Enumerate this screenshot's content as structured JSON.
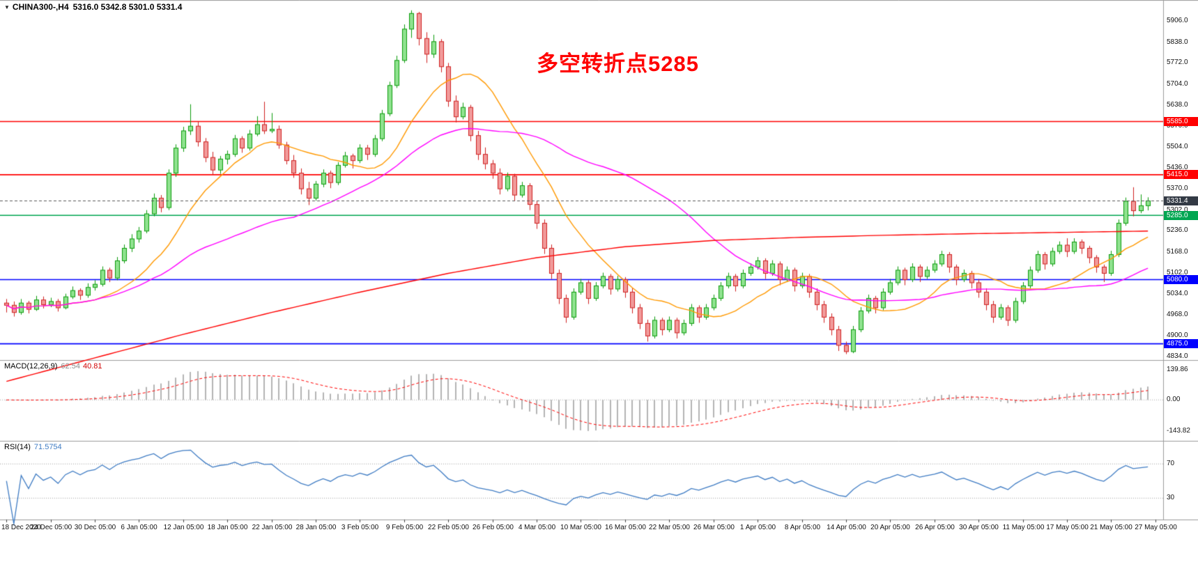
{
  "header": {
    "menu_icon": "▼",
    "symbol_timeframe": "CHINA300-,H4",
    "ohlc_values": "5316.0 5342.8 5301.0 5331.4"
  },
  "annotation": {
    "text": "多空转折点5285",
    "color": "#FF0000"
  },
  "chart_data": {
    "type": "candlestick",
    "symbol": "CHINA300-",
    "timeframe": "H4",
    "last_ohlc": {
      "open": 5316.0,
      "high": 5342.8,
      "low": 5301.0,
      "close": 5331.4
    },
    "price_axis": {
      "view_min": 4823,
      "view_max": 5973,
      "ticks": [
        "5906.0",
        "5838.0",
        "5772.0",
        "5704.0",
        "5638.0",
        "5570.0",
        "5504.0",
        "5436.0",
        "5370.0",
        "5302.0",
        "5236.0",
        "5168.0",
        "5102.0",
        "5034.0",
        "4968.0",
        "4900.0",
        "4834.0"
      ]
    },
    "x_axis": {
      "candles_per_label": 6,
      "labels": [
        "18 Dec 2020",
        "24 Dec 05:00",
        "30 Dec 05:00",
        "6 Jan 05:00",
        "12 Jan 05:00",
        "18 Jan 05:00",
        "22 Jan 05:00",
        "28 Jan 05:00",
        "3 Feb 05:00",
        "9 Feb 05:00",
        "22 Feb 05:00",
        "26 Feb 05:00",
        "4 Mar 05:00",
        "10 Mar 05:00",
        "16 Mar 05:00",
        "22 Mar 05:00",
        "26 Mar 05:00",
        "1 Apr 05:00",
        "8 Apr 05:00",
        "14 Apr 05:00",
        "20 Apr 05:00",
        "26 Apr 05:00",
        "30 Apr 05:00",
        "11 May 05:00",
        "17 May 05:00",
        "21 May 05:00",
        "27 May 05:00"
      ]
    },
    "up_color": {
      "fill": "#8FE28F",
      "border": "#0a9b0a"
    },
    "down_color": {
      "fill": "#F19A9A",
      "border": "#cf2020"
    },
    "candles": [
      [
        5005,
        5018,
        4975,
        4998
      ],
      [
        4998,
        5010,
        4962,
        4975
      ],
      [
        4975,
        5018,
        4968,
        5005
      ],
      [
        5005,
        5012,
        4972,
        4985
      ],
      [
        4985,
        5028,
        4980,
        5015
      ],
      [
        5015,
        5026,
        4988,
        5000
      ],
      [
        5000,
        5022,
        4992,
        5010
      ],
      [
        5010,
        5018,
        4978,
        4990
      ],
      [
        4990,
        5035,
        4985,
        5025
      ],
      [
        5025,
        5058,
        5018,
        5045
      ],
      [
        5045,
        5052,
        5015,
        5030
      ],
      [
        5030,
        5068,
        5022,
        5055
      ],
      [
        5055,
        5078,
        5045,
        5065
      ],
      [
        5065,
        5122,
        5058,
        5110
      ],
      [
        5110,
        5118,
        5072,
        5085
      ],
      [
        5085,
        5152,
        5078,
        5140
      ],
      [
        5140,
        5192,
        5132,
        5180
      ],
      [
        5180,
        5225,
        5168,
        5210
      ],
      [
        5210,
        5248,
        5198,
        5235
      ],
      [
        5235,
        5302,
        5228,
        5290
      ],
      [
        5290,
        5355,
        5282,
        5340
      ],
      [
        5340,
        5350,
        5295,
        5310
      ],
      [
        5310,
        5432,
        5302,
        5420
      ],
      [
        5420,
        5512,
        5408,
        5500
      ],
      [
        5500,
        5568,
        5488,
        5555
      ],
      [
        5555,
        5640,
        5542,
        5570
      ],
      [
        5570,
        5585,
        5505,
        5520
      ],
      [
        5520,
        5532,
        5455,
        5470
      ],
      [
        5470,
        5488,
        5415,
        5430
      ],
      [
        5430,
        5475,
        5418,
        5465
      ],
      [
        5465,
        5492,
        5448,
        5480
      ],
      [
        5480,
        5542,
        5472,
        5530
      ],
      [
        5530,
        5538,
        5485,
        5500
      ],
      [
        5500,
        5558,
        5492,
        5545
      ],
      [
        5545,
        5602,
        5538,
        5575
      ],
      [
        5575,
        5648,
        5545,
        5555
      ],
      [
        5555,
        5612,
        5548,
        5560
      ],
      [
        5560,
        5572,
        5498,
        5510
      ],
      [
        5510,
        5520,
        5448,
        5460
      ],
      [
        5460,
        5478,
        5405,
        5420
      ],
      [
        5420,
        5435,
        5352,
        5370
      ],
      [
        5370,
        5392,
        5318,
        5340
      ],
      [
        5340,
        5395,
        5332,
        5385
      ],
      [
        5385,
        5432,
        5375,
        5420
      ],
      [
        5420,
        5428,
        5372,
        5390
      ],
      [
        5390,
        5455,
        5382,
        5445
      ],
      [
        5445,
        5488,
        5438,
        5475
      ],
      [
        5475,
        5482,
        5435,
        5460
      ],
      [
        5460,
        5512,
        5452,
        5500
      ],
      [
        5500,
        5510,
        5462,
        5480
      ],
      [
        5480,
        5542,
        5472,
        5530
      ],
      [
        5530,
        5622,
        5522,
        5610
      ],
      [
        5610,
        5712,
        5602,
        5700
      ],
      [
        5700,
        5795,
        5692,
        5780
      ],
      [
        5780,
        5895,
        5772,
        5880
      ],
      [
        5880,
        5940,
        5852,
        5930
      ],
      [
        5930,
        5935,
        5828,
        5850
      ],
      [
        5850,
        5870,
        5772,
        5800
      ],
      [
        5800,
        5862,
        5788,
        5840
      ],
      [
        5840,
        5848,
        5742,
        5760
      ],
      [
        5760,
        5772,
        5632,
        5650
      ],
      [
        5650,
        5668,
        5582,
        5600
      ],
      [
        5600,
        5645,
        5592,
        5630
      ],
      [
        5630,
        5638,
        5522,
        5540
      ],
      [
        5540,
        5555,
        5462,
        5480
      ],
      [
        5480,
        5502,
        5432,
        5450
      ],
      [
        5450,
        5462,
        5402,
        5420
      ],
      [
        5420,
        5435,
        5352,
        5370
      ],
      [
        5370,
        5422,
        5362,
        5410
      ],
      [
        5410,
        5418,
        5332,
        5350
      ],
      [
        5350,
        5392,
        5342,
        5380
      ],
      [
        5380,
        5388,
        5302,
        5320
      ],
      [
        5320,
        5332,
        5242,
        5260
      ],
      [
        5260,
        5272,
        5162,
        5180
      ],
      [
        5180,
        5192,
        5082,
        5100
      ],
      [
        5100,
        5112,
        5002,
        5020
      ],
      [
        5020,
        5032,
        4942,
        4960
      ],
      [
        4960,
        5052,
        4952,
        5040
      ],
      [
        5040,
        5082,
        5032,
        5070
      ],
      [
        5070,
        5078,
        5002,
        5020
      ],
      [
        5020,
        5072,
        5012,
        5060
      ],
      [
        5060,
        5102,
        5052,
        5090
      ],
      [
        5090,
        5098,
        5032,
        5050
      ],
      [
        5050,
        5092,
        5042,
        5080
      ],
      [
        5080,
        5088,
        5022,
        5040
      ],
      [
        5040,
        5052,
        4972,
        4990
      ],
      [
        4990,
        5002,
        4922,
        4940
      ],
      [
        4940,
        4952,
        4882,
        4900
      ],
      [
        4900,
        4962,
        4892,
        4950
      ],
      [
        4950,
        4958,
        4902,
        4920
      ],
      [
        4920,
        4962,
        4912,
        4950
      ],
      [
        4950,
        4958,
        4892,
        4910
      ],
      [
        4910,
        4952,
        4902,
        4940
      ],
      [
        4940,
        5002,
        4932,
        4990
      ],
      [
        4990,
        4998,
        4942,
        4960
      ],
      [
        4960,
        5002,
        4952,
        4990
      ],
      [
        4990,
        5032,
        4982,
        5020
      ],
      [
        5020,
        5072,
        5012,
        5060
      ],
      [
        5060,
        5102,
        5052,
        5090
      ],
      [
        5090,
        5098,
        5042,
        5060
      ],
      [
        5060,
        5112,
        5052,
        5100
      ],
      [
        5100,
        5132,
        5092,
        5120
      ],
      [
        5120,
        5152,
        5112,
        5140
      ],
      [
        5140,
        5148,
        5082,
        5100
      ],
      [
        5100,
        5142,
        5092,
        5130
      ],
      [
        5130,
        5138,
        5062,
        5080
      ],
      [
        5080,
        5122,
        5072,
        5110
      ],
      [
        5110,
        5118,
        5042,
        5060
      ],
      [
        5060,
        5102,
        5052,
        5090
      ],
      [
        5090,
        5098,
        5022,
        5040
      ],
      [
        5040,
        5052,
        4982,
        5000
      ],
      [
        5000,
        5012,
        4942,
        4960
      ],
      [
        4960,
        4972,
        4902,
        4920
      ],
      [
        4920,
        4932,
        4852,
        4870
      ],
      [
        4870,
        4882,
        4842,
        4850
      ],
      [
        4850,
        4932,
        4845,
        4920
      ],
      [
        4920,
        4992,
        4912,
        4980
      ],
      [
        4980,
        5032,
        4972,
        5020
      ],
      [
        5020,
        5028,
        4972,
        4990
      ],
      [
        4990,
        5052,
        4982,
        5040
      ],
      [
        5040,
        5082,
        5032,
        5070
      ],
      [
        5070,
        5122,
        5062,
        5110
      ],
      [
        5110,
        5118,
        5062,
        5080
      ],
      [
        5080,
        5132,
        5072,
        5120
      ],
      [
        5120,
        5128,
        5072,
        5090
      ],
      [
        5090,
        5122,
        5082,
        5110
      ],
      [
        5110,
        5142,
        5102,
        5130
      ],
      [
        5130,
        5172,
        5122,
        5160
      ],
      [
        5160,
        5168,
        5102,
        5120
      ],
      [
        5120,
        5128,
        5062,
        5080
      ],
      [
        5080,
        5112,
        5072,
        5100
      ],
      [
        5100,
        5108,
        5052,
        5070
      ],
      [
        5070,
        5082,
        5022,
        5040
      ],
      [
        5040,
        5052,
        4982,
        5000
      ],
      [
        5000,
        5012,
        4942,
        4960
      ],
      [
        4960,
        5002,
        4952,
        4990
      ],
      [
        4990,
        4998,
        4932,
        4950
      ],
      [
        4950,
        5022,
        4942,
        5010
      ],
      [
        5010,
        5072,
        5002,
        5060
      ],
      [
        5060,
        5122,
        5052,
        5110
      ],
      [
        5110,
        5172,
        5102,
        5160
      ],
      [
        5160,
        5168,
        5112,
        5130
      ],
      [
        5130,
        5182,
        5122,
        5170
      ],
      [
        5170,
        5202,
        5162,
        5190
      ],
      [
        5190,
        5212,
        5152,
        5170
      ],
      [
        5170,
        5212,
        5162,
        5200
      ],
      [
        5200,
        5208,
        5162,
        5180
      ],
      [
        5180,
        5188,
        5132,
        5150
      ],
      [
        5150,
        5158,
        5102,
        5120
      ],
      [
        5120,
        5128,
        5072,
        5100
      ],
      [
        5100,
        5172,
        5092,
        5160
      ],
      [
        5160,
        5272,
        5152,
        5260
      ],
      [
        5260,
        5342,
        5252,
        5330
      ],
      [
        5330,
        5375,
        5282,
        5300
      ],
      [
        5300,
        5352,
        5292,
        5316
      ],
      [
        5316,
        5342.8,
        5301,
        5331.4
      ]
    ],
    "moving_averages": [
      {
        "name": "ma-fast",
        "type": "sma",
        "period": 13,
        "color": "#FF9900"
      },
      {
        "name": "ma-mid",
        "type": "sma",
        "period": 40,
        "color": "#FF00FF"
      },
      {
        "name": "ma-slow",
        "type": "points",
        "color": "#FF0000",
        "points": [
          [
            0,
            4755
          ],
          [
            12,
            4830
          ],
          [
            24,
            4905
          ],
          [
            36,
            4975
          ],
          [
            48,
            5040
          ],
          [
            60,
            5100
          ],
          [
            72,
            5150
          ],
          [
            84,
            5185
          ],
          [
            96,
            5205
          ],
          [
            108,
            5215
          ],
          [
            120,
            5222
          ],
          [
            132,
            5227
          ],
          [
            144,
            5231
          ],
          [
            155,
            5235
          ]
        ]
      }
    ],
    "hlines": [
      {
        "value": 5585.0,
        "label": "5585.0",
        "color": "#FF0000"
      },
      {
        "value": 5415.0,
        "label": "5415.0",
        "color": "#FF0000"
      },
      {
        "value": 5285.0,
        "label": "5285.0",
        "color": "#00A651"
      },
      {
        "value": 5080.0,
        "label": "5080.0",
        "color": "#0000FF"
      },
      {
        "value": 4875.0,
        "label": "4875.0",
        "color": "#0000FF"
      }
    ],
    "current_price": {
      "value": 5331.4,
      "label": "5331.4",
      "line_color": "#555555",
      "tag_color": "#333a45"
    },
    "macd": {
      "label": "MACD(12,26,9)",
      "main_value": "62.54",
      "signal_value": "40.81",
      "fast": 12,
      "slow": 26,
      "signal": 9,
      "view_min": -190,
      "view_max": 185,
      "axis_ticks": [
        {
          "value": 139.86,
          "label": "139.86"
        },
        {
          "value": 0,
          "label": "0.00"
        },
        {
          "value": -143.82,
          "label": "-143.82"
        }
      ],
      "hist_color": "#b4b4b4",
      "signal_color": "#FF0000"
    },
    "rsi": {
      "label": "RSI(14)",
      "value": "71.5754",
      "period": 14,
      "view_min": 5,
      "view_max": 97,
      "levels": [
        {
          "value": 70,
          "label": "70"
        },
        {
          "value": 30,
          "label": "30"
        }
      ],
      "line_color": "#3f7cc4"
    }
  }
}
